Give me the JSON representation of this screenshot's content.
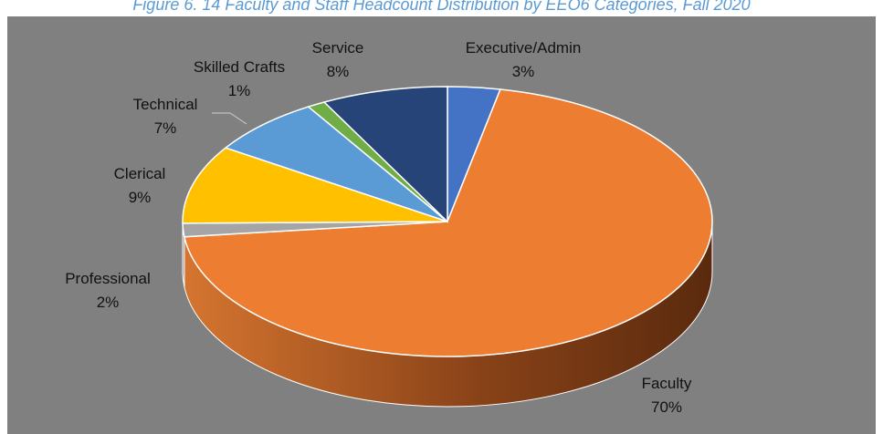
{
  "figure_title": "Figure 6. 14 Faculty and Staff Headcount Distribution by EEO6 Categories, Fall 2020",
  "colors": {
    "background": "#808080",
    "title": "#5b9bd5",
    "label_text": "#111111"
  },
  "chart_data": {
    "type": "pie",
    "style": "3d",
    "title": "Figure 6. 14 Faculty and Staff Headcount Distribution by EEO6 Categories, Fall 2020",
    "slices": [
      {
        "name": "Executive/Admin",
        "pct_label": "3%",
        "value": 3.2,
        "color": "#4472c4"
      },
      {
        "name": "Faculty",
        "pct_label": "70%",
        "value": 70.0,
        "color": "#ed7d31"
      },
      {
        "name": "Professional",
        "pct_label": "2%",
        "value": 1.6,
        "color": "#a5a5a5"
      },
      {
        "name": "Clerical",
        "pct_label": "9%",
        "value": 9.4,
        "color": "#ffc000"
      },
      {
        "name": "Technical",
        "pct_label": "7%",
        "value": 7.0,
        "color": "#5b9bd5"
      },
      {
        "name": "Skilled Crafts",
        "pct_label": "1%",
        "value": 1.1,
        "color": "#70ad47"
      },
      {
        "name": "Service",
        "pct_label": "8%",
        "value": 7.7,
        "color": "#264478"
      }
    ]
  }
}
